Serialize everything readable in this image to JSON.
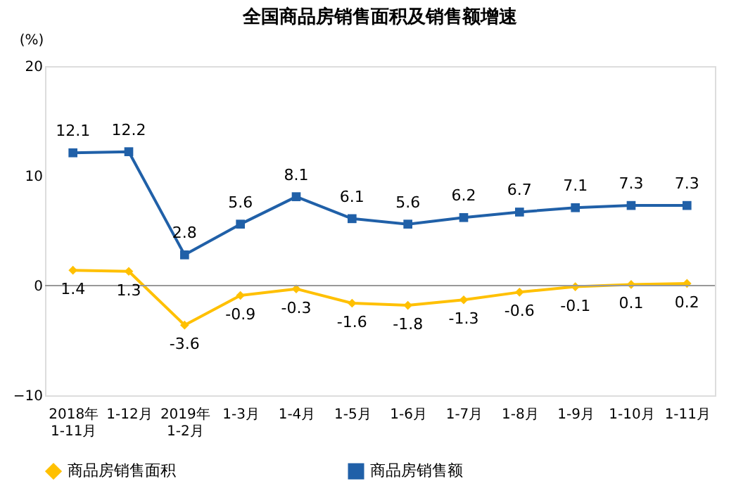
{
  "chart_data": {
    "type": "line",
    "title": "全国商品房销售面积及销售额增速",
    "ylabel": "(%)",
    "categories": [
      "2018年\n1-11月",
      "1-12月",
      "2019年\n1-2月",
      "1-3月",
      "1-4月",
      "1-5月",
      "1-6月",
      "1-7月",
      "1-8月",
      "1-9月",
      "1-10月",
      "1-11月"
    ],
    "series": [
      {
        "name": "商品房销售面积",
        "color": "#ffc000",
        "marker": "diamond",
        "values": [
          1.4,
          1.3,
          -3.6,
          -0.9,
          -0.3,
          -1.6,
          -1.8,
          -1.3,
          -0.6,
          -0.1,
          0.1,
          0.2
        ]
      },
      {
        "name": "商品房销售额",
        "color": "#2060a8",
        "marker": "square",
        "values": [
          12.1,
          12.2,
          2.8,
          5.6,
          8.1,
          6.1,
          5.6,
          6.2,
          6.7,
          7.1,
          7.3,
          7.3
        ]
      }
    ],
    "ref_lines": [
      {
        "axis": "y",
        "value": 0,
        "color": "#999999"
      }
    ],
    "ylim": [
      -10,
      20
    ],
    "yticks": [
      -10,
      0,
      10,
      20
    ],
    "grid": false,
    "legend": "bottom",
    "data_labels": true,
    "line_style": "solid"
  }
}
